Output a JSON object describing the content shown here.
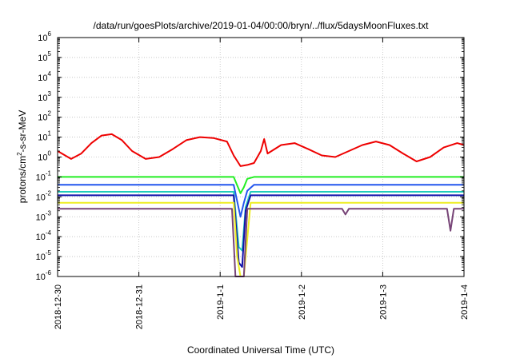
{
  "chart_data": {
    "type": "line",
    "title": "/data/run/goesPlots/archive/2019-01-04/00:00/bryn/../flux/5daysMoonFluxes.txt",
    "xlabel": "Coordinated Universal Time (UTC)",
    "ylabel": "protons/cm²-s-sr-MeV",
    "ylabel_parts": {
      "base": "protons/cm",
      "sup": "2",
      "rest": "-s-sr-MeV"
    },
    "y_scale": "log",
    "ylim": [
      1e-06,
      1000000.0
    ],
    "y_ticks": [
      {
        "value": 1e-06,
        "base": "10",
        "exp": "-6"
      },
      {
        "value": 1e-05,
        "base": "10",
        "exp": "-5"
      },
      {
        "value": 0.0001,
        "base": "10",
        "exp": "-4"
      },
      {
        "value": 0.001,
        "base": "10",
        "exp": "-3"
      },
      {
        "value": 0.01,
        "base": "10",
        "exp": "-2"
      },
      {
        "value": 0.1,
        "base": "10",
        "exp": "-1"
      },
      {
        "value": 1,
        "base": "10",
        "exp": "0"
      },
      {
        "value": 10,
        "base": "10",
        "exp": "1"
      },
      {
        "value": 100,
        "base": "10",
        "exp": "2"
      },
      {
        "value": 1000,
        "base": "10",
        "exp": "3"
      },
      {
        "value": 10000,
        "base": "10",
        "exp": "4"
      },
      {
        "value": 100000,
        "base": "10",
        "exp": "5"
      },
      {
        "value": 1000000,
        "base": "10",
        "exp": "6"
      }
    ],
    "xlim": [
      "2018-12-30",
      "2019-01-04"
    ],
    "x_ticks": [
      {
        "value": "2018-12-30",
        "label": "2018-12-30"
      },
      {
        "value": "2018-12-31",
        "label": "2018-12-31"
      },
      {
        "value": "2019-01-01",
        "label": "2019-1-1"
      },
      {
        "value": "2019-01-02",
        "label": "2019-1-2"
      },
      {
        "value": "2019-01-03",
        "label": "2019-1-3"
      },
      {
        "value": "2019-01-04",
        "label": "2019-1-4"
      }
    ],
    "grid": true,
    "colors": {
      "red": "#ee0000",
      "green": "#22ee22",
      "blue": "#2255ee",
      "cyan": "#22ccbb",
      "navy": "#1111aa",
      "yellow": "#eeee22",
      "purple": "#774477"
    },
    "series": [
      {
        "color": "#ee0000",
        "x": [
          "2018-12-30T00:00",
          "2018-12-30T04:00",
          "2018-12-30T07:00",
          "2018-12-30T10:00",
          "2018-12-30T13:00",
          "2018-12-30T16:00",
          "2018-12-30T19:00",
          "2018-12-30T22:00",
          "2018-12-31T02:00",
          "2018-12-31T06:00",
          "2018-12-31T10:00",
          "2018-12-31T14:00",
          "2018-12-31T18:00",
          "2018-12-31T22:00",
          "2019-01-01T02:00",
          "2019-01-01T04:00",
          "2019-01-01T06:00",
          "2019-01-01T08:00",
          "2019-01-01T10:00",
          "2019-01-01T12:00",
          "2019-01-01T13:00",
          "2019-01-01T14:00",
          "2019-01-01T18:00",
          "2019-01-01T22:00",
          "2019-01-02T02:00",
          "2019-01-02T06:00",
          "2019-01-02T10:00",
          "2019-01-02T14:00",
          "2019-01-02T18:00",
          "2019-01-02T22:00",
          "2019-01-03T02:00",
          "2019-01-03T06:00",
          "2019-01-03T10:00",
          "2019-01-03T14:00",
          "2019-01-03T18:00",
          "2019-01-03T22:00",
          "2019-01-04T00:00"
        ],
        "values": [
          2,
          0.8,
          1.5,
          5,
          12,
          14,
          7,
          2,
          0.8,
          1,
          2.5,
          7,
          10,
          9,
          6,
          1.2,
          0.35,
          0.4,
          0.5,
          2,
          8,
          1.5,
          4,
          5,
          2.5,
          1.2,
          1,
          2,
          4,
          6,
          4,
          1.5,
          0.6,
          1,
          3,
          5,
          4
        ]
      },
      {
        "color": "#22ee22",
        "x": [
          "2018-12-30T00:00",
          "2019-01-01T04:00",
          "2019-01-01T06:00",
          "2019-01-01T07:00",
          "2019-01-01T08:00",
          "2019-01-01T10:00",
          "2019-01-04T00:00"
        ],
        "values": [
          0.1,
          0.1,
          0.015,
          0.03,
          0.08,
          0.1,
          0.1
        ]
      },
      {
        "color": "#2255ee",
        "x": [
          "2018-12-30T00:00",
          "2019-01-01T04:00",
          "2019-01-01T06:00",
          "2019-01-01T07:00",
          "2019-01-01T08:00",
          "2019-01-01T10:00",
          "2019-01-04T00:00"
        ],
        "values": [
          0.04,
          0.04,
          0.001,
          0.005,
          0.02,
          0.04,
          0.04
        ]
      },
      {
        "color": "#22ccbb",
        "x": [
          "2018-12-30T00:00",
          "2019-01-01T04:00",
          "2019-01-01T05:30",
          "2019-01-01T06:30",
          "2019-01-01T07:30",
          "2019-01-01T09:00",
          "2019-01-04T00:00"
        ],
        "values": [
          0.018,
          0.018,
          3e-05,
          2e-05,
          0.003,
          0.018,
          0.018
        ]
      },
      {
        "color": "#1111aa",
        "x": [
          "2018-12-30T00:00",
          "2019-01-01T04:00",
          "2019-01-01T05:30",
          "2019-01-01T06:30",
          "2019-01-01T07:30",
          "2019-01-01T09:00",
          "2019-01-04T00:00"
        ],
        "values": [
          0.012,
          0.012,
          5e-06,
          3e-06,
          0.002,
          0.012,
          0.012
        ]
      },
      {
        "color": "#eeee22",
        "x": [
          "2018-12-30T00:00",
          "2019-01-01T04:00",
          "2019-01-01T05:00",
          "2019-01-01T06:00",
          "2019-01-01T07:00",
          "2019-01-01T09:00",
          "2019-01-04T00:00"
        ],
        "values": [
          0.005,
          0.005,
          1e-05,
          1e-06,
          1e-06,
          0.005,
          0.005
        ]
      },
      {
        "color": "#774477",
        "x": [
          "2018-12-30T00:00",
          "2019-01-01T03:30",
          "2019-01-01T04:30",
          "2019-01-01T06:00",
          "2019-01-01T07:00",
          "2019-01-01T08:00",
          "2019-01-02T12:00",
          "2019-01-02T13:00",
          "2019-01-02T14:00",
          "2019-01-03T19:00",
          "2019-01-03T20:00",
          "2019-01-03T21:00",
          "2019-01-04T00:00"
        ],
        "values": [
          0.0025,
          0.0025,
          1e-06,
          1e-06,
          1e-06,
          0.0025,
          0.0025,
          0.0013,
          0.0025,
          0.0025,
          0.0002,
          0.0025,
          0.0025
        ]
      }
    ]
  }
}
